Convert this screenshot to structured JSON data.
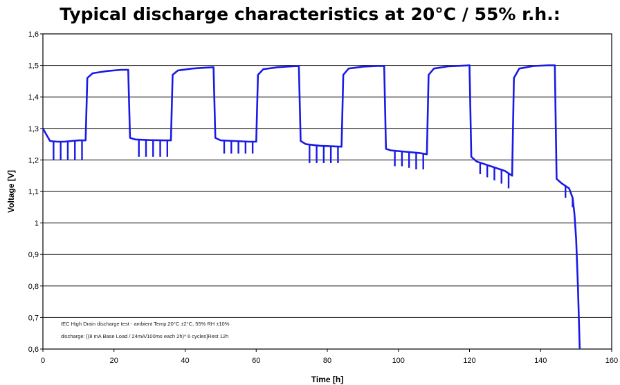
{
  "chart_data": {
    "type": "line",
    "title": "Typical discharge characteristics at 20°C / 55% r.h.:",
    "xlabel": "Time [h]",
    "ylabel": "Voltage [V]",
    "xlim": [
      0,
      160
    ],
    "ylim": [
      0.6,
      1.6
    ],
    "x_ticks": [
      "0",
      "20",
      "40",
      "60",
      "80",
      "100",
      "120",
      "140",
      "160"
    ],
    "y_ticks": [
      "0,6",
      "0,7",
      "0,8",
      "0,9",
      "1",
      "1,1",
      "1,2",
      "1,3",
      "1,4",
      "1,5",
      "1,6"
    ],
    "grid": "horizontal",
    "line_color": "#1a1ae6",
    "annotations": [
      "IEC High Drain discharge test - ambient Temp.20°C ±2°C, 55% RH ±10%",
      "discharge: [(8 mA Base Load / 24mA/100ms each 2h)* 6 cycles]Rest 12h"
    ],
    "series": [
      {
        "x": [
          0,
          1,
          2,
          4,
          6,
          8,
          10,
          12,
          12.5,
          14,
          18,
          22,
          24,
          24.5,
          26,
          30,
          34,
          36,
          36.5,
          38,
          42,
          46,
          48,
          48.5,
          50,
          54,
          58,
          60,
          60.5,
          62,
          66,
          70,
          72,
          72.5,
          74,
          78,
          82,
          84,
          84.5,
          86,
          90,
          94,
          96,
          96.5,
          98,
          102,
          106,
          108,
          108.5,
          110,
          114,
          118,
          120,
          120.5,
          122,
          126,
          130,
          132,
          132.5,
          134,
          138,
          142,
          144,
          144.5,
          146,
          148,
          149,
          149.5,
          150,
          150.5,
          151
        ],
        "y": [
          1.3,
          1.28,
          1.26,
          1.258,
          1.258,
          1.26,
          1.262,
          1.262,
          1.46,
          1.475,
          1.482,
          1.486,
          1.486,
          1.27,
          1.265,
          1.263,
          1.262,
          1.262,
          1.47,
          1.484,
          1.49,
          1.493,
          1.494,
          1.27,
          1.262,
          1.26,
          1.258,
          1.258,
          1.47,
          1.488,
          1.494,
          1.497,
          1.498,
          1.26,
          1.25,
          1.245,
          1.243,
          1.242,
          1.47,
          1.49,
          1.496,
          1.498,
          1.498,
          1.235,
          1.23,
          1.226,
          1.222,
          1.218,
          1.47,
          1.49,
          1.497,
          1.499,
          1.5,
          1.21,
          1.195,
          1.18,
          1.165,
          1.15,
          1.46,
          1.49,
          1.498,
          1.5,
          1.5,
          1.14,
          1.125,
          1.11,
          1.08,
          1.03,
          0.95,
          0.8,
          0.6
        ]
      }
    ],
    "pulse_series": {
      "x": [
        3,
        5,
        7,
        9,
        11,
        27,
        29,
        31,
        33,
        35,
        51,
        53,
        55,
        57,
        59,
        75,
        77,
        79,
        81,
        83,
        99,
        101,
        103,
        105,
        107,
        123,
        125,
        127,
        129,
        131,
        147,
        149
      ],
      "y_low": [
        1.2,
        1.2,
        1.2,
        1.2,
        1.2,
        1.21,
        1.21,
        1.21,
        1.21,
        1.21,
        1.22,
        1.22,
        1.22,
        1.22,
        1.22,
        1.19,
        1.19,
        1.19,
        1.19,
        1.19,
        1.18,
        1.18,
        1.175,
        1.17,
        1.17,
        1.155,
        1.145,
        1.135,
        1.125,
        1.11,
        1.08,
        1.05
      ]
    }
  }
}
